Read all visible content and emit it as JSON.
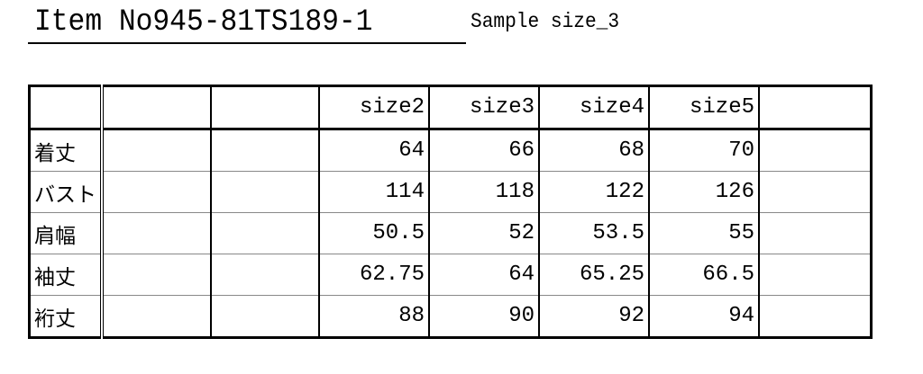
{
  "title": "Item No945-81TS189-1",
  "sample_size": "Sample size_3",
  "table": {
    "headers": [
      "",
      "",
      "",
      "size2",
      "size3",
      "size4",
      "size5",
      ""
    ],
    "rows": [
      {
        "label": "着丈",
        "values": [
          "64",
          "66",
          "68",
          "70"
        ]
      },
      {
        "label": "バスト",
        "values": [
          "114",
          "118",
          "122",
          "126"
        ]
      },
      {
        "label": "肩幅",
        "values": [
          "50.5",
          "52",
          "53.5",
          "55"
        ]
      },
      {
        "label": "袖丈",
        "values": [
          "62.75",
          "64",
          "65.25",
          "66.5"
        ]
      },
      {
        "label": "裄丈",
        "values": [
          "88",
          "90",
          "92",
          "94"
        ]
      }
    ]
  }
}
